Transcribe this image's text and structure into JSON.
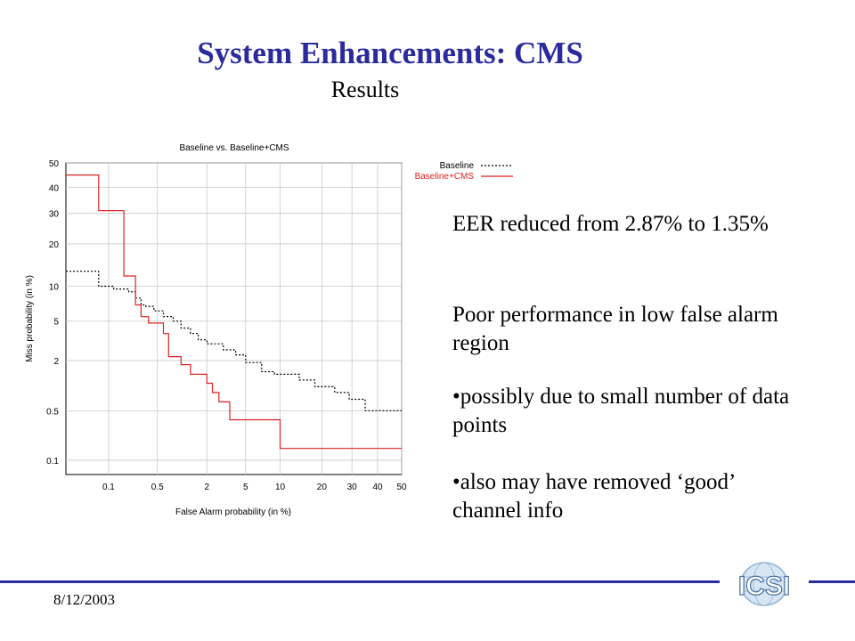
{
  "slide": {
    "title": "System Enhancements: CMS",
    "subtitle": "Results",
    "bullets": [
      "EER reduced from 2.87% to 1.35%",
      "Poor performance in low false alarm region",
      "•possibly due to small number of data points",
      "•also may have removed ‘good’ channel info"
    ],
    "footer_date": "8/12/2003",
    "logo_text": "ICSI"
  },
  "colors": {
    "title": "#2b2b9e",
    "baseline": "#000000",
    "cms": "#dd2222",
    "grid": "#c8c8c8",
    "footer_line": "#2b2b9e"
  },
  "chart_data": {
    "type": "line",
    "title": "Baseline vs. Baseline+CMS",
    "xlabel": "False Alarm probability (in %)",
    "ylabel": "Miss probability (in %)",
    "scale": "normal-deviate (DET)",
    "xticks": [
      "0.1",
      "0.5",
      "2",
      "5",
      "10",
      "20",
      "30",
      "40",
      "50"
    ],
    "yticks": [
      "0.1",
      "0.5",
      "2",
      "5",
      "10",
      "20",
      "30",
      "40",
      "50"
    ],
    "xlim": [
      0.02,
      50
    ],
    "ylim": [
      0.06,
      50
    ],
    "grid": true,
    "legend_position": "top-right",
    "series": [
      {
        "name": "Baseline",
        "style": "dashed",
        "points": [
          [
            0.02,
            13
          ],
          [
            0.07,
            13
          ],
          [
            0.07,
            10
          ],
          [
            0.12,
            10
          ],
          [
            0.12,
            9.5
          ],
          [
            0.2,
            9.5
          ],
          [
            0.2,
            9
          ],
          [
            0.25,
            9
          ],
          [
            0.25,
            8
          ],
          [
            0.3,
            8
          ],
          [
            0.3,
            7
          ],
          [
            0.35,
            7
          ],
          [
            0.35,
            6.8
          ],
          [
            0.45,
            6.8
          ],
          [
            0.45,
            6.2
          ],
          [
            0.6,
            6.2
          ],
          [
            0.6,
            5.5
          ],
          [
            0.8,
            5.5
          ],
          [
            0.8,
            5
          ],
          [
            1,
            5
          ],
          [
            1,
            4.3
          ],
          [
            1.3,
            4.3
          ],
          [
            1.3,
            3.8
          ],
          [
            1.6,
            3.8
          ],
          [
            1.6,
            3.3
          ],
          [
            2,
            3.3
          ],
          [
            2,
            3
          ],
          [
            3,
            3
          ],
          [
            3,
            2.6
          ],
          [
            4,
            2.6
          ],
          [
            4,
            2.3
          ],
          [
            5,
            2.3
          ],
          [
            5,
            1.9
          ],
          [
            7,
            1.9
          ],
          [
            7,
            1.5
          ],
          [
            9,
            1.5
          ],
          [
            9,
            1.4
          ],
          [
            14,
            1.4
          ],
          [
            14,
            1.2
          ],
          [
            18,
            1.2
          ],
          [
            18,
            1
          ],
          [
            24,
            1
          ],
          [
            24,
            0.85
          ],
          [
            29,
            0.85
          ],
          [
            29,
            0.7
          ],
          [
            35,
            0.7
          ],
          [
            35,
            0.5
          ],
          [
            50,
            0.5
          ]
        ]
      },
      {
        "name": "Baseline+CMS",
        "style": "solid",
        "points": [
          [
            0.02,
            45
          ],
          [
            0.07,
            45
          ],
          [
            0.07,
            31
          ],
          [
            0.17,
            31
          ],
          [
            0.17,
            12
          ],
          [
            0.25,
            12
          ],
          [
            0.25,
            7
          ],
          [
            0.3,
            7
          ],
          [
            0.3,
            5.5
          ],
          [
            0.38,
            5.5
          ],
          [
            0.38,
            4.8
          ],
          [
            0.6,
            4.8
          ],
          [
            0.6,
            3.8
          ],
          [
            0.7,
            3.8
          ],
          [
            0.7,
            2.2
          ],
          [
            1,
            2.2
          ],
          [
            1,
            1.8
          ],
          [
            1.3,
            1.8
          ],
          [
            1.3,
            1.4
          ],
          [
            2,
            1.4
          ],
          [
            2,
            1.1
          ],
          [
            2.3,
            1.1
          ],
          [
            2.3,
            0.85
          ],
          [
            2.7,
            0.85
          ],
          [
            2.7,
            0.65
          ],
          [
            3.5,
            0.65
          ],
          [
            3.5,
            0.38
          ],
          [
            10,
            0.38
          ],
          [
            10,
            0.15
          ],
          [
            50,
            0.15
          ]
        ]
      }
    ]
  }
}
